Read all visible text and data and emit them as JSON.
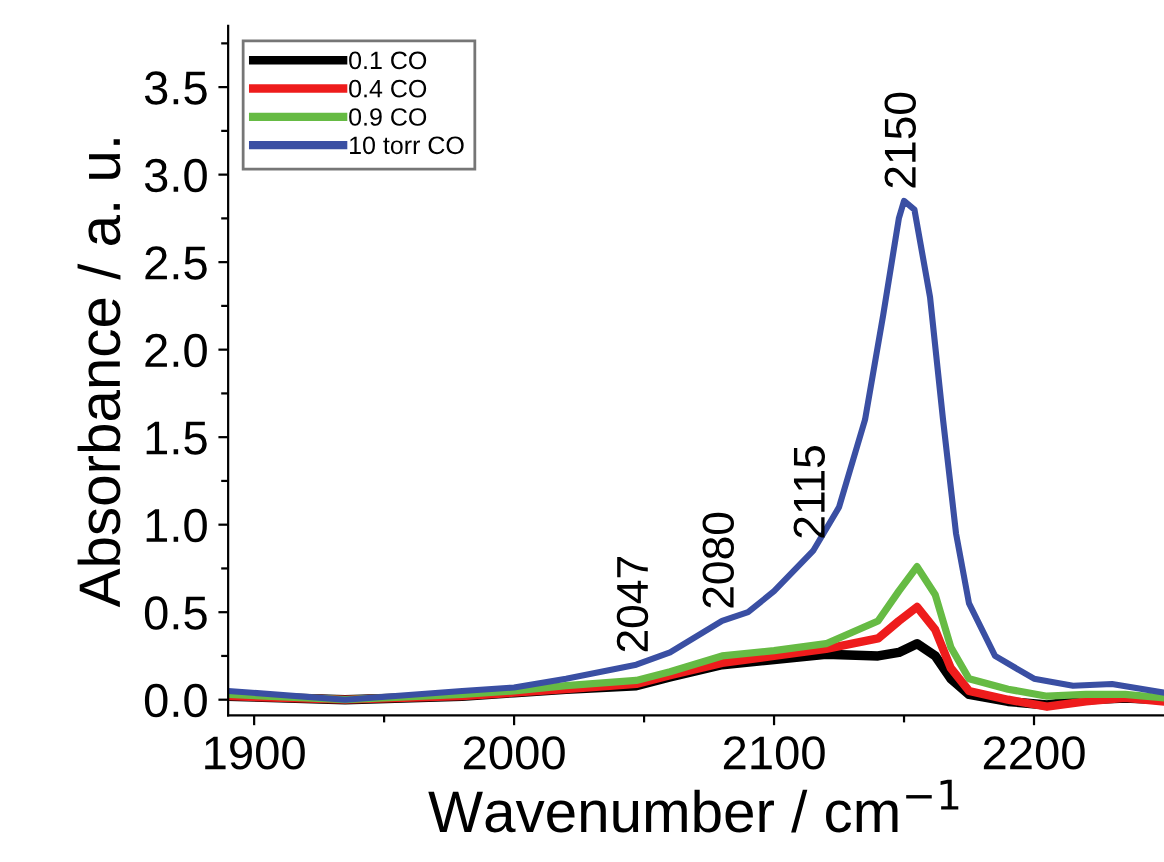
{
  "chart_data": {
    "type": "line",
    "xlabel": "Wavenumber / cm$^{−1}$",
    "ylabel": "Absorbance / a. u.",
    "xlim": [
      1890,
      2250
    ],
    "ylim": [
      -0.09,
      3.85
    ],
    "xticks": [
      1900,
      {
        "value": 1950,
        "label": null
      },
      2000,
      {
        "value": 2050,
        "label": null
      },
      2100,
      {
        "value": 2150,
        "label": null
      },
      2200
    ],
    "yticks": [
      {
        "value": 0,
        "label": "0.0"
      },
      {
        "value": 0.25,
        "label": null
      },
      0.5,
      {
        "value": 0.75,
        "label": null
      },
      {
        "value": 1,
        "label": "1.0"
      },
      {
        "value": 1.25,
        "label": null
      },
      1.5,
      {
        "value": 1.75,
        "label": null
      },
      {
        "value": 2,
        "label": "2.0"
      },
      {
        "value": 2.25,
        "label": null
      },
      2.5,
      {
        "value": 2.75,
        "label": null
      },
      {
        "value": 3,
        "label": "3.0"
      },
      {
        "value": 3.25,
        "label": null
      },
      3.5,
      {
        "value": 3.75,
        "label": null
      }
    ],
    "legend": "top left",
    "grid": false,
    "marker": "none",
    "line_style": "solid",
    "annotations": [
      {
        "text": "2047",
        "x": 2047,
        "y": 0.2
      },
      {
        "text": "2080",
        "x": 2080,
        "y": 0.45
      },
      {
        "text": "2115",
        "x": 2115,
        "y": 0.85
      },
      {
        "text": "2150",
        "x": 2150,
        "y": 2.85
      }
    ],
    "series": [
      {
        "name": "0.1 CO",
        "color": "#000000",
        "x": [
          1890,
          1935,
          1980,
          2000,
          2020,
          2047,
          2060,
          2080,
          2100,
          2120,
          2140,
          2148,
          2155,
          2162,
          2168,
          2175,
          2190,
          2205,
          2220,
          2235,
          2250
        ],
        "values": [
          0.02,
          0.0,
          0.02,
          0.04,
          0.06,
          0.08,
          0.13,
          0.2,
          0.23,
          0.26,
          0.25,
          0.27,
          0.32,
          0.25,
          0.12,
          0.03,
          -0.01,
          -0.03,
          0.0,
          0.01,
          0.0
        ]
      },
      {
        "name": "0.4 CO",
        "color": "#ee1c1c",
        "x": [
          1890,
          1935,
          1980,
          2000,
          2020,
          2047,
          2060,
          2080,
          2100,
          2120,
          2140,
          2148,
          2155,
          2162,
          2168,
          2175,
          2190,
          2205,
          2220,
          2235,
          2250
        ],
        "values": [
          0.02,
          0.0,
          0.02,
          0.04,
          0.06,
          0.09,
          0.14,
          0.21,
          0.25,
          0.29,
          0.35,
          0.45,
          0.53,
          0.4,
          0.18,
          0.05,
          0.0,
          -0.04,
          -0.01,
          0.01,
          -0.01
        ]
      },
      {
        "name": "0.9 CO",
        "color": "#66bb44",
        "x": [
          1890,
          1935,
          1980,
          2000,
          2020,
          2047,
          2060,
          2080,
          2100,
          2120,
          2140,
          2148,
          2155,
          2162,
          2168,
          2175,
          2190,
          2205,
          2220,
          2235,
          2250
        ],
        "values": [
          0.03,
          0.0,
          0.03,
          0.05,
          0.08,
          0.11,
          0.16,
          0.25,
          0.28,
          0.32,
          0.45,
          0.62,
          0.76,
          0.6,
          0.3,
          0.12,
          0.06,
          0.02,
          0.03,
          0.03,
          0.01
        ]
      },
      {
        "name": "10 torr CO",
        "color": "#3a4fa3",
        "x": [
          1890,
          1935,
          1980,
          2000,
          2020,
          2047,
          2060,
          2080,
          2090,
          2100,
          2115,
          2125,
          2135,
          2142,
          2148,
          2150,
          2154,
          2160,
          2165,
          2170,
          2175,
          2185,
          2200,
          2215,
          2230,
          2250
        ],
        "values": [
          0.05,
          0.0,
          0.05,
          0.07,
          0.12,
          0.2,
          0.27,
          0.45,
          0.5,
          0.62,
          0.85,
          1.1,
          1.6,
          2.2,
          2.75,
          2.85,
          2.8,
          2.3,
          1.6,
          0.95,
          0.55,
          0.25,
          0.12,
          0.08,
          0.09,
          0.04
        ]
      }
    ]
  }
}
